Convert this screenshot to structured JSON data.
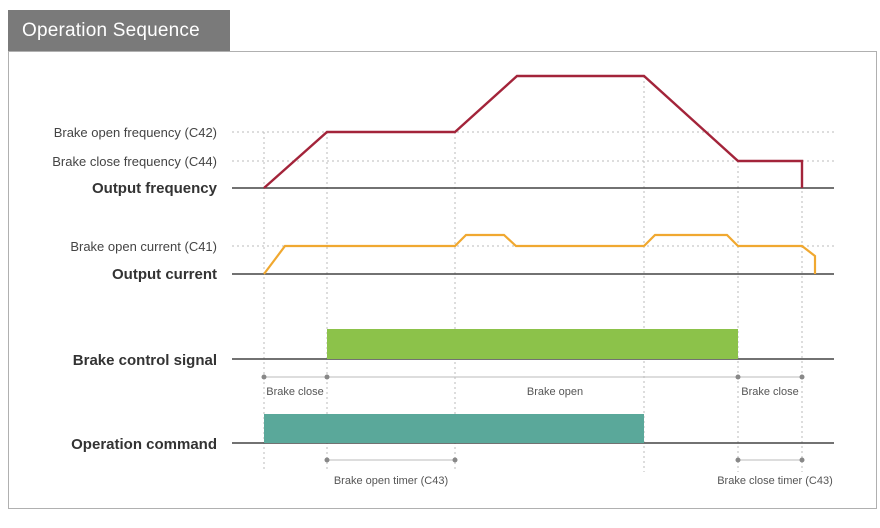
{
  "title": "Operation Sequence",
  "labels": {
    "brake_open_frequency": "Brake open frequency (C42)",
    "brake_close_frequency": "Brake close frequency (C44)",
    "output_frequency": "Output frequency",
    "brake_open_current": "Brake open current (C41)",
    "output_current": "Output current",
    "brake_control_signal": "Brake control signal",
    "operation_command": "Operation command"
  },
  "annotations": {
    "brake_close_1": "Brake close",
    "brake_open": "Brake open",
    "brake_close_2": "Brake close",
    "brake_open_timer": "Brake open timer (C43)",
    "brake_close_timer": "Brake close timer (C43)"
  },
  "colors": {
    "frequency": "#a3243a",
    "current": "#f0a830",
    "brake_signal": "#8cc24a",
    "operation_command": "#5aa89a",
    "tab": "#7a7a7a"
  }
}
